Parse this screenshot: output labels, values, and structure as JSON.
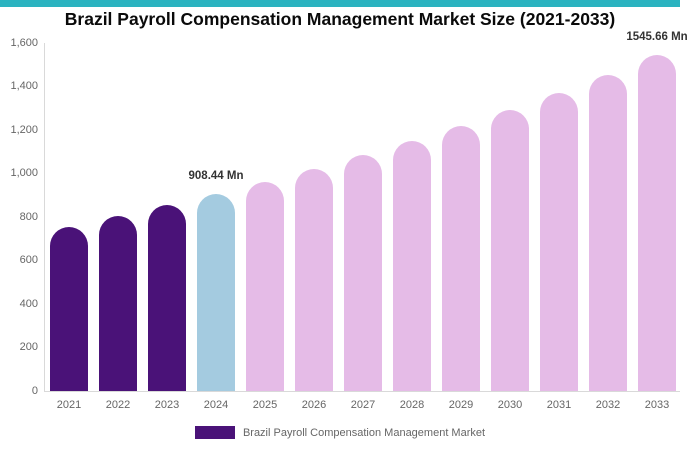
{
  "accent_bar_color": "#2bb3c0",
  "title": "Brazil Payroll Compensation Management Market Size (2021-2033)",
  "legend": {
    "label": "Brazil Payroll Compensation Management Market",
    "swatch_color": "#4a1278"
  },
  "colors": {
    "historical": "#4a1278",
    "base": "#a4cbe0",
    "forecast": "#e5bbe7",
    "axis_text": "#666666",
    "axis_line": "#d9d9d9",
    "annotation_text": "#333333"
  },
  "chart_data": {
    "type": "bar",
    "title": "Brazil Payroll Compensation Management Market Size (2021-2033)",
    "unit": "Mn",
    "categories": [
      "2021",
      "2022",
      "2023",
      "2024",
      "2025",
      "2026",
      "2027",
      "2028",
      "2029",
      "2030",
      "2031",
      "2032",
      "2033"
    ],
    "values": [
      755,
      806,
      858,
      908.44,
      963.7,
      1022.3,
      1084.5,
      1150.4,
      1220.3,
      1294.5,
      1373.2,
      1456.7,
      1545.66
    ],
    "bar_segments": [
      "historical",
      "historical",
      "historical",
      "base",
      "forecast",
      "forecast",
      "forecast",
      "forecast",
      "forecast",
      "forecast",
      "forecast",
      "forecast",
      "forecast"
    ],
    "annotations": [
      {
        "category": "2024",
        "text": "908.44 Mn"
      },
      {
        "category": "2033",
        "text": "1545.66 Mn"
      }
    ],
    "ylim": [
      0,
      1600
    ],
    "ytick_step": 200,
    "ytick_labels": [
      "0",
      "200",
      "400",
      "600",
      "800",
      "1,000",
      "1,200",
      "1,400",
      "1,600"
    ],
    "grid": false,
    "legend_position": "bottom",
    "legend_entries": [
      "Brazil Payroll Compensation Management Market"
    ]
  }
}
